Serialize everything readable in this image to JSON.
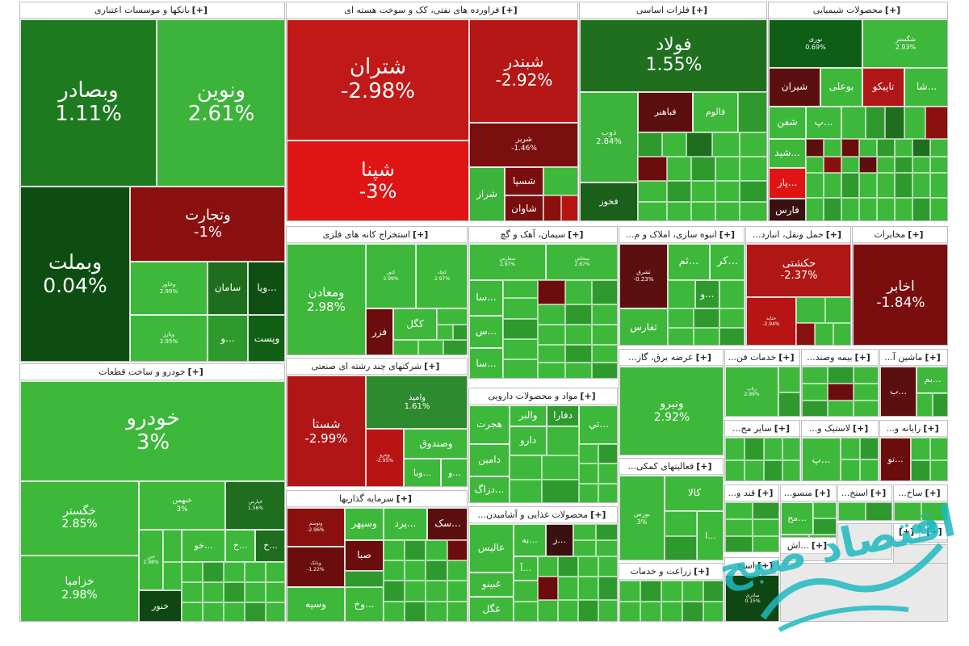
{
  "colors": {
    "up_strong": "#0f5e16",
    "up_mid": "#2a8f2a",
    "up_light": "#3db83a",
    "down_dark": "#6b0d0d",
    "down_mid": "#b31515",
    "down_bright": "#e01414",
    "flat": "#1e6d1e",
    "background": "#ffffff"
  },
  "watermark_text": "اقتصاد صبح",
  "sectors": [
    {
      "key": "banks",
      "title": "بانکها و موسسات اعتباری",
      "plus": "[+]"
    },
    {
      "key": "refinery",
      "title": "فراورده های نفتی، کک و سوخت هسته ای",
      "plus": "[+]"
    },
    {
      "key": "metals",
      "title": "فلزات اساسی",
      "plus": "[+]"
    },
    {
      "key": "chemicals",
      "title": "محصولات شیمیایی",
      "plus": "[+]"
    },
    {
      "key": "autos",
      "title": "خودرو و ساخت قطعات",
      "plus": "[+]"
    },
    {
      "key": "mining",
      "title": "استخراج کانه های فلزی",
      "plus": "[+]"
    },
    {
      "key": "cement",
      "title": "سیمان، آهک و گچ",
      "plus": "[+]"
    },
    {
      "key": "construction",
      "title": "انبوه سازی، املاک و م...",
      "plus": "[+]"
    },
    {
      "key": "transport",
      "title": "حمل ونقل، انبارد...",
      "plus": "[+]"
    },
    {
      "key": "telecom",
      "title": "مخابرات",
      "plus": "[+]"
    },
    {
      "key": "holding",
      "title": "شرکتهای چند رشته ای صنعتی",
      "plus": "[+]"
    },
    {
      "key": "pharma",
      "title": "مواد و محصولات دارویی",
      "plus": "[+]"
    },
    {
      "key": "utilities",
      "title": "عرضه برق، گاز...",
      "plus": "[+]"
    },
    {
      "key": "itservices",
      "title": "خدمات فن...",
      "plus": "[+]"
    },
    {
      "key": "insurance",
      "title": "بیمه وصند...",
      "plus": "[+]"
    },
    {
      "key": "machinery",
      "title": "ماشین آ...",
      "plus": "[+]"
    },
    {
      "key": "investment",
      "title": "سرمایه گذاریها",
      "plus": "[+]"
    },
    {
      "key": "food",
      "title": "محصولات غذایی و آشامیدن...",
      "plus": "[+]"
    },
    {
      "key": "auxiliary",
      "title": "فعالیتهای کمکی...",
      "plus": "[+]"
    },
    {
      "key": "otherfin",
      "title": "سایر مح...",
      "plus": "[+]"
    },
    {
      "key": "plastics",
      "title": "لاستیک و...",
      "plus": "[+]"
    },
    {
      "key": "computer",
      "title": "رایانه و...",
      "plus": "[+]"
    },
    {
      "key": "sugar",
      "title": "قند و...",
      "plus": "[+]"
    },
    {
      "key": "textile",
      "title": "منسو...",
      "plus": "[+]"
    },
    {
      "key": "mining2",
      "title": "استخ...",
      "plus": "[+]"
    },
    {
      "key": "constr2",
      "title": "ساخ...",
      "plus": "[+]"
    },
    {
      "key": "agri",
      "title": "زراعت و خدمات",
      "plus": "[+]"
    },
    {
      "key": "mining3",
      "title": "استخ...",
      "plus": "[+]"
    },
    {
      "key": "misc1",
      "title": "...اش",
      "plus": "[+]"
    },
    {
      "key": "misc2",
      "title": "",
      "plus": "[+]"
    },
    {
      "key": "misc3",
      "title": "",
      "plus": "[+]"
    }
  ],
  "stocks": [
    {
      "name": "وبصادر",
      "change": "1.11%"
    },
    {
      "name": "ونوین",
      "change": "2.61%"
    },
    {
      "name": "وبملت",
      "change": "0.04%"
    },
    {
      "name": "وتجارت",
      "change": "-1%"
    },
    {
      "name": "وخاور",
      "change": "2.99%"
    },
    {
      "name": "سامان",
      "change": ""
    },
    {
      "name": "...ویا",
      "change": ""
    },
    {
      "name": "وپارز",
      "change": "2.95%"
    },
    {
      "name": "...و",
      "change": ""
    },
    {
      "name": "وپست",
      "change": ""
    },
    {
      "name": "شتران",
      "change": "-2.98%"
    },
    {
      "name": "شبندر",
      "change": "-2.92%"
    },
    {
      "name": "شریز",
      "change": "-1.46%"
    },
    {
      "name": "شپنا",
      "change": "-3%"
    },
    {
      "name": "شسپا",
      "change": ""
    },
    {
      "name": "شراز",
      "change": ""
    },
    {
      "name": "شاوان",
      "change": ""
    },
    {
      "name": "فولاد",
      "change": "1.55%"
    },
    {
      "name": "ذوب",
      "change": "2.84%"
    },
    {
      "name": "فباهنر",
      "change": ""
    },
    {
      "name": "فالوم",
      "change": ""
    },
    {
      "name": "فخوز",
      "change": ""
    },
    {
      "name": "نوری",
      "change": "0.69%"
    },
    {
      "name": "شگستر",
      "change": "2.93%"
    },
    {
      "name": "شیران",
      "change": ""
    },
    {
      "name": "بوعلی",
      "change": ""
    },
    {
      "name": "تاپیکو",
      "change": ""
    },
    {
      "name": "...شا",
      "change": ""
    },
    {
      "name": "شفن",
      "change": ""
    },
    {
      "name": "...پ",
      "change": ""
    },
    {
      "name": "...شید",
      "change": ""
    },
    {
      "name": "...پار",
      "change": ""
    },
    {
      "name": "فارس",
      "change": ""
    },
    {
      "name": "خودرو",
      "change": "3%"
    },
    {
      "name": "خگستر",
      "change": "2.85%"
    },
    {
      "name": "خزامیا",
      "change": "2.98%"
    },
    {
      "name": "خبهمن",
      "change": "3%"
    },
    {
      "name": "خنور",
      "change": ""
    },
    {
      "name": "...خو",
      "change": ""
    },
    {
      "name": "...خ",
      "change": ""
    },
    {
      "name": "...خ",
      "change": ""
    },
    {
      "name": "خپارس",
      "change": "1.56%"
    },
    {
      "name": "خزر",
      "change": "2.98%"
    },
    {
      "name": "ومعادن",
      "change": "2.98%"
    },
    {
      "name": "کگل",
      "change": ""
    },
    {
      "name": "فزر",
      "change": ""
    },
    {
      "name": "کنور",
      "change": "2.99%"
    },
    {
      "name": "کچاد",
      "change": "2.97%"
    },
    {
      "name": "سفارس",
      "change": "2.97%"
    },
    {
      "name": "سخاش",
      "change": "2.87%"
    },
    {
      "name": "...سا",
      "change": ""
    },
    {
      "name": "...س",
      "change": ""
    },
    {
      "name": "...سا",
      "change": ""
    },
    {
      "name": "ثفارس",
      "change": ""
    },
    {
      "name": "...ثم",
      "change": ""
    },
    {
      "name": "...کر",
      "change": ""
    },
    {
      "name": "...و",
      "change": ""
    },
    {
      "name": "ثشرق",
      "change": "-0.23%"
    },
    {
      "name": "حکشتی",
      "change": "-2.37%"
    },
    {
      "name": "حتاید",
      "change": "-2.94%"
    },
    {
      "name": "اخابر",
      "change": "-1.84%"
    },
    {
      "name": "شستا",
      "change": "-2.99%"
    },
    {
      "name": "وامید",
      "change": "1.61%"
    },
    {
      "name": "وصندوق",
      "change": ""
    },
    {
      "name": "...وبا",
      "change": ""
    },
    {
      "name": "وپترو",
      "change": "-2.95%"
    },
    {
      "name": "...و",
      "change": ""
    },
    {
      "name": "هجرت",
      "change": ""
    },
    {
      "name": "والبر",
      "change": ""
    },
    {
      "name": "دفارا",
      "change": ""
    },
    {
      "name": "دارو",
      "change": ""
    },
    {
      "name": "دامین",
      "change": ""
    },
    {
      "name": "...تي",
      "change": ""
    },
    {
      "name": "...دزاگ",
      "change": ""
    },
    {
      "name": "ونیرو",
      "change": "2.92%"
    },
    {
      "name": "رتاپ",
      "change": "2.99%"
    },
    {
      "name": "...بم",
      "change": ""
    },
    {
      "name": "...ب",
      "change": ""
    },
    {
      "name": "...تو",
      "change": ""
    },
    {
      "name": "...پ",
      "change": ""
    },
    {
      "name": "وسپهر",
      "change": ""
    },
    {
      "name": "...پرد",
      "change": ""
    },
    {
      "name": "...سک",
      "change": ""
    },
    {
      "name": "صبا",
      "change": ""
    },
    {
      "name": "وسپه",
      "change": ""
    },
    {
      "name": "...وخ",
      "change": ""
    },
    {
      "name": "وتوسم",
      "change": "-2.96%"
    },
    {
      "name": "وبانک",
      "change": "-1.22%"
    },
    {
      "name": "عالیس",
      "change": ""
    },
    {
      "name": "غبینو",
      "change": ""
    },
    {
      "name": "غگل",
      "change": ""
    },
    {
      "name": "...به",
      "change": ""
    },
    {
      "name": "...آ",
      "change": ""
    },
    {
      "name": "...ز",
      "change": ""
    },
    {
      "name": "کالا",
      "change": ""
    },
    {
      "name": "بورس",
      "change": "3%"
    },
    {
      "name": "...ا",
      "change": ""
    },
    {
      "name": "...مح",
      "change": ""
    },
    {
      "name": "ساذری",
      "change": "0.15%"
    }
  ]
}
